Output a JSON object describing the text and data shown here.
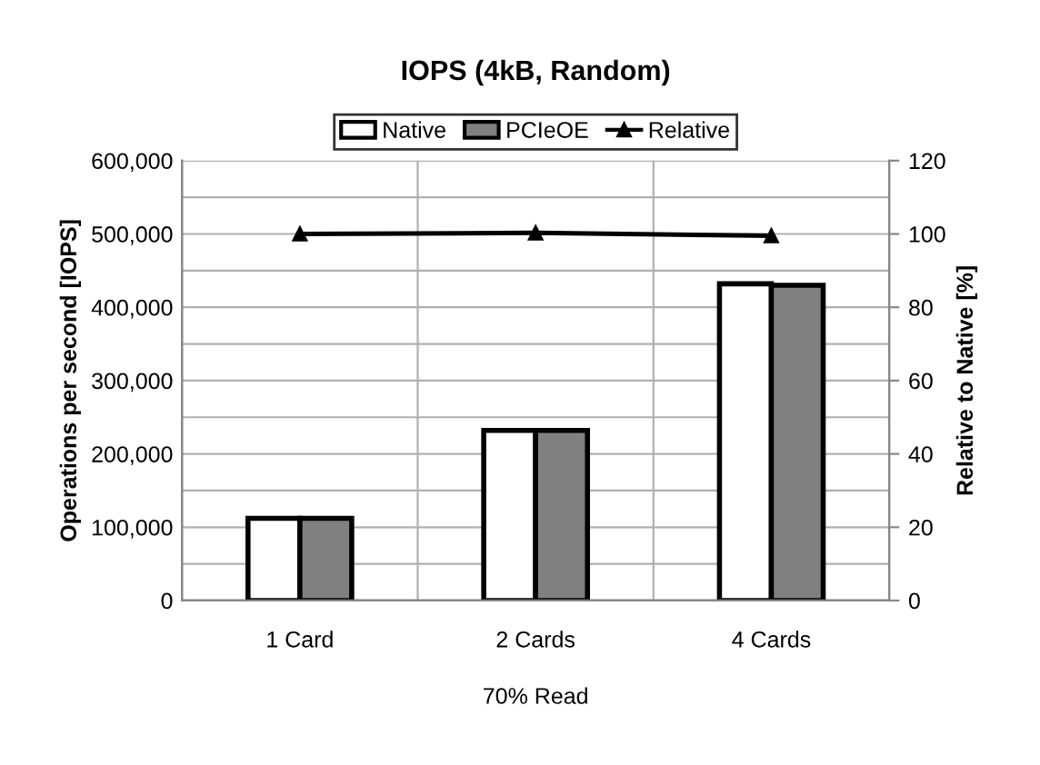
{
  "chart_data": {
    "type": "bar",
    "title": "IOPS (4kB, Random)",
    "xlabel": "70% Read",
    "ylabel": "Operations per second [IOPS]",
    "y2label": "Relative to Native [%]",
    "categories": [
      "1 Card",
      "2 Cards",
      "4 Cards"
    ],
    "series": [
      {
        "name": "Native",
        "color": "#ffffff",
        "values": [
          112000,
          232000,
          432000
        ]
      },
      {
        "name": "PCIeOE",
        "color": "#808080",
        "values": [
          112000,
          232000,
          430000
        ]
      },
      {
        "name": "Relative",
        "type": "line",
        "axis": "y2",
        "color": "#000000",
        "marker": "triangle",
        "values": [
          100,
          100.3,
          99.5
        ]
      }
    ],
    "ylim": [
      0,
      600000
    ],
    "yticks": [
      0,
      {
        "value": 50000,
        "label": null
      },
      {
        "value": 100000,
        "label": "100,000"
      },
      {
        "value": 150000,
        "label": null
      },
      {
        "value": 200000,
        "label": "200,000"
      },
      {
        "value": 250000,
        "label": null
      },
      {
        "value": 300000,
        "label": "300,000"
      },
      {
        "value": 350000,
        "label": null
      },
      {
        "value": 400000,
        "label": "400,000"
      },
      {
        "value": 450000,
        "label": null
      },
      {
        "value": 500000,
        "label": "500,000"
      },
      {
        "value": 550000,
        "label": null
      },
      {
        "value": 600000,
        "label": "600,000"
      }
    ],
    "y2lim": [
      0,
      120
    ],
    "y2ticks": [
      0,
      20,
      40,
      60,
      80,
      100,
      120
    ],
    "grid": true,
    "legend": "top"
  }
}
